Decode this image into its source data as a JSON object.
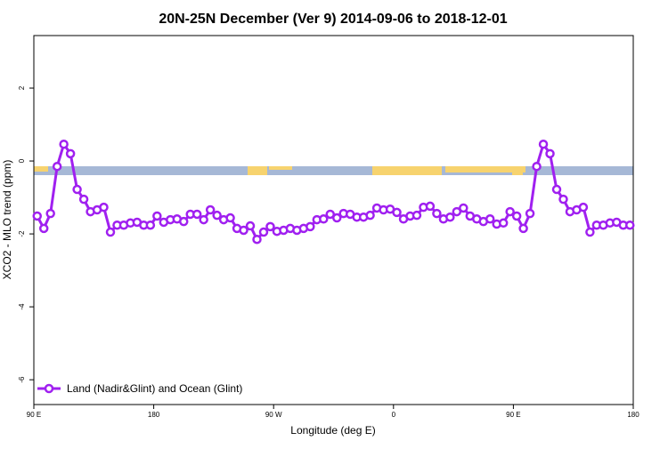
{
  "chart_data": {
    "type": "line",
    "title": "20N-25N December (Ver 9)   2014-09-06 to 2018-12-01",
    "x_label": "Longitude (deg E)",
    "y_label": "XCO2 - MLO trend (ppm)",
    "x": [
      92.5,
      97.5,
      102.5,
      107.5,
      112.5,
      117.5,
      122.5,
      127.5,
      132.5,
      137.5,
      142.5,
      147.5,
      152.5,
      157.5,
      162.5,
      167.5,
      172.5,
      177.5,
      182.5,
      187.5,
      192.5,
      197.5,
      202.5,
      207.5,
      212.5,
      217.5,
      222.5,
      227.5,
      232.5,
      237.5,
      242.5,
      247.5,
      252.5,
      257.5,
      262.5,
      267.5,
      272.5,
      277.5,
      282.5,
      287.5,
      292.5,
      297.5,
      302.5,
      307.5,
      312.5,
      317.5,
      322.5,
      327.5,
      332.5,
      337.5,
      342.5,
      347.5,
      352.5,
      357.5,
      362.5,
      367.5,
      372.5,
      377.5,
      382.5,
      387.5,
      392.5,
      397.5,
      402.5,
      407.5,
      412.5,
      417.5,
      422.5,
      427.5,
      432.5,
      437.5,
      442.5,
      447.5,
      452.5,
      457.5,
      462.5,
      467.5,
      472.5,
      477.5,
      482.5,
      487.5,
      492.5,
      497.5,
      502.5,
      507.5,
      512.5,
      517.5,
      522.5,
      527.5,
      532.5,
      537.5
    ],
    "series": [
      {
        "name": "Land (Nadir&Glint) and Ocean (Glint)",
        "color": "#a020f0",
        "values": [
          -1.51,
          -1.85,
          -1.44,
          -0.15,
          0.46,
          0.2,
          -0.78,
          -1.05,
          -1.39,
          -1.34,
          -1.27,
          -1.95,
          -1.76,
          -1.76,
          -1.7,
          -1.68,
          -1.76,
          -1.76,
          -1.51,
          -1.68,
          -1.61,
          -1.59,
          -1.66,
          -1.46,
          -1.46,
          -1.61,
          -1.34,
          -1.49,
          -1.61,
          -1.56,
          -1.85,
          -1.9,
          -1.78,
          -2.15,
          -1.95,
          -1.8,
          -1.93,
          -1.9,
          -1.85,
          -1.9,
          -1.85,
          -1.8,
          -1.61,
          -1.59,
          -1.46,
          -1.56,
          -1.44,
          -1.46,
          -1.54,
          -1.54,
          -1.49,
          -1.29,
          -1.34,
          -1.32,
          -1.41,
          -1.59,
          -1.51,
          -1.49,
          -1.27,
          -1.24,
          -1.44,
          -1.59,
          -1.54,
          -1.39,
          -1.29,
          -1.51,
          -1.59,
          -1.66,
          -1.59,
          -1.73,
          -1.7,
          -1.39,
          -1.51,
          -1.85,
          -1.44,
          -0.15,
          0.46,
          0.2,
          -0.78,
          -1.05,
          -1.39,
          -1.34,
          -1.27,
          -1.95,
          -1.76,
          -1.76,
          -1.7,
          -1.68,
          -1.76,
          -1.76
        ]
      }
    ],
    "xlim": [
      90,
      540
    ],
    "xticks": [
      {
        "value": 90,
        "label": "90 E"
      },
      180,
      {
        "value": 270,
        "label": "90 W"
      },
      {
        "value": 360,
        "label": "0"
      },
      {
        "value": 450,
        "label": "90 E"
      },
      {
        "value": 540,
        "label": "180"
      }
    ],
    "ylim": [
      -6.68,
      3.44
    ],
    "yticks": [
      -6,
      -4,
      -2,
      0,
      2
    ],
    "legend": "bottom-left"
  }
}
